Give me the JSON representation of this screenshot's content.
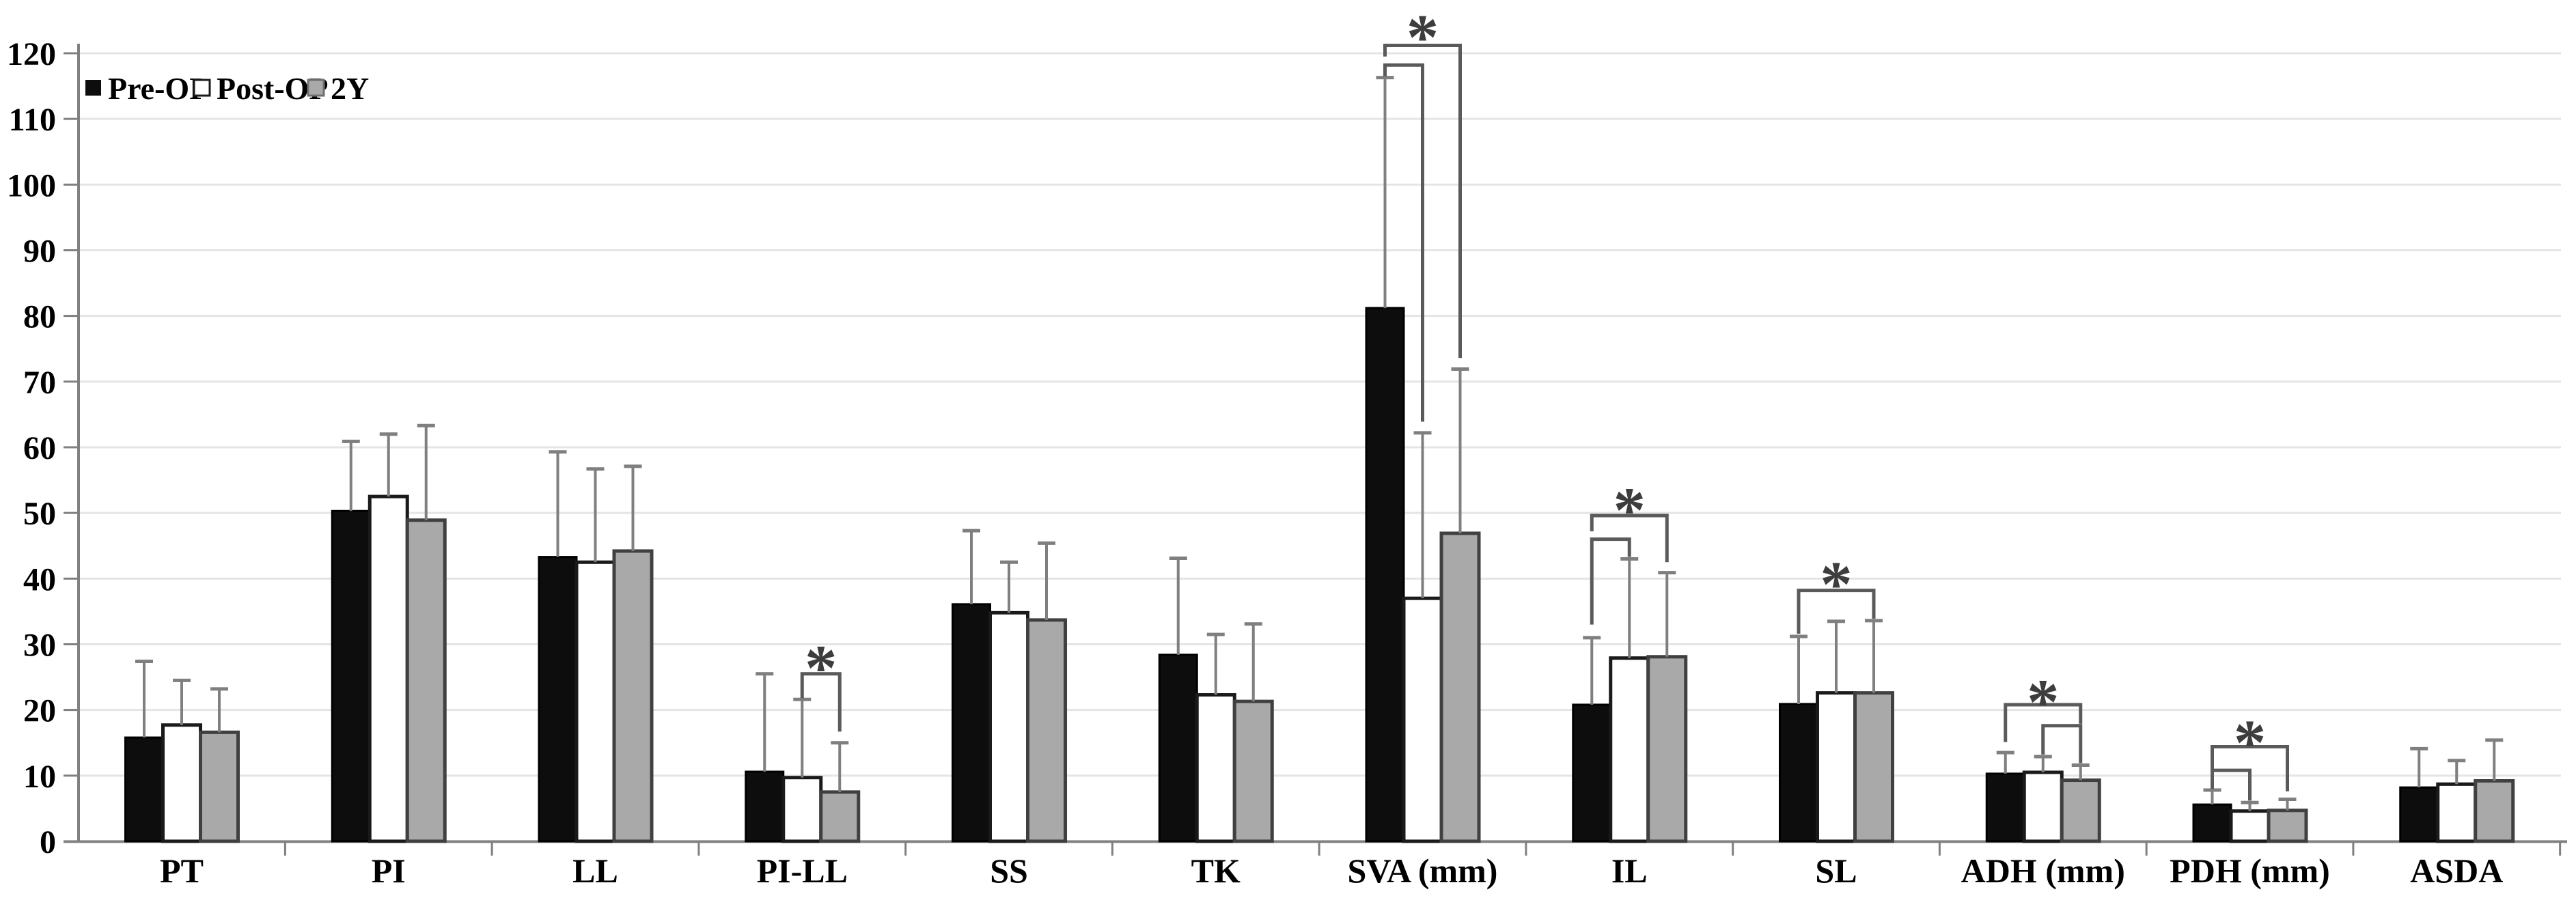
{
  "chart_data": {
    "type": "bar",
    "title": "",
    "xlabel": "",
    "ylabel": "",
    "categories": [
      "PT",
      "PI",
      "LL",
      "PI-LL",
      "SS",
      "TK",
      "SVA (mm)",
      "IL",
      "SL",
      "ADH (mm)",
      "PDH (mm)",
      "ASDA"
    ],
    "series": [
      {
        "name": "Pre-OP",
        "fill": "#0d0d0d",
        "stroke": "#000000",
        "values": [
          15.8,
          50.3,
          43.3,
          10.6,
          36.1,
          28.4,
          81.2,
          20.8,
          20.9,
          10.3,
          5.6,
          8.2
        ],
        "error_tops": [
          27.4,
          60.9,
          59.3,
          25.5,
          47.3,
          43.1,
          116.3,
          31.0,
          31.2,
          13.5,
          7.8,
          14.1
        ]
      },
      {
        "name": "Post-OP",
        "fill": "#ffffff",
        "stroke": "#1a1a1a",
        "values": [
          17.7,
          52.5,
          42.5,
          9.7,
          34.8,
          22.3,
          37.0,
          27.9,
          22.6,
          10.5,
          4.6,
          8.7
        ],
        "error_tops": [
          24.5,
          62.0,
          56.7,
          21.6,
          42.5,
          31.5,
          62.2,
          43.0,
          33.5,
          12.9,
          5.9,
          12.3
        ]
      },
      {
        "name": "2Y",
        "fill": "#a9a9a9",
        "stroke": "#404040",
        "values": [
          16.6,
          48.9,
          44.2,
          7.5,
          33.7,
          21.3,
          46.9,
          28.1,
          22.6,
          9.3,
          4.7,
          9.2
        ],
        "error_tops": [
          23.2,
          63.3,
          57.1,
          15.0,
          45.4,
          33.1,
          71.9,
          40.9,
          33.6,
          11.6,
          6.4,
          15.4
        ]
      }
    ],
    "ylim": [
      0,
      120
    ],
    "ytick_step": 10,
    "yticks": [
      "0",
      "10",
      "20",
      "30",
      "40",
      "50",
      "60",
      "70",
      "80",
      "90",
      "100",
      "110",
      "120"
    ],
    "grid": true,
    "legend_position": "top-left",
    "error_bars": "upper-sd-whiskers",
    "significance": [
      {
        "category": "PI-LL",
        "category_index": 3,
        "star": "*",
        "star_y": 28.3,
        "brackets": [
          {
            "from_series": 1,
            "to_series": 2,
            "bar_y": 25.5,
            "left_leg_to": 21.8,
            "right_leg_to": 16.7
          }
        ]
      },
      {
        "category": "SVA (mm)",
        "category_index": 6,
        "star": "*",
        "star_y": 124.3,
        "brackets": [
          {
            "from_series": 0,
            "to_series": 1,
            "bar_y": 118.2,
            "left_leg_to": 116.5,
            "right_leg_to": 63.9
          },
          {
            "from_series": 0,
            "to_series": 2,
            "bar_y": 121.2,
            "left_leg_to": 119.5,
            "right_leg_to": 73.6
          }
        ]
      },
      {
        "category": "IL",
        "category_index": 7,
        "star": "*",
        "star_y": 52.3,
        "brackets": [
          {
            "from_series": 0,
            "to_series": 1,
            "bar_y": 46.0,
            "left_leg_to": 33.0,
            "right_leg_to": 43.3
          },
          {
            "from_series": 0,
            "to_series": 2,
            "bar_y": 49.6,
            "left_leg_to": 47.2,
            "right_leg_to": 42.5
          }
        ]
      },
      {
        "category": "SL",
        "category_index": 8,
        "star": "*",
        "star_y": 41.0,
        "brackets": [
          {
            "from_series": 0,
            "to_series": 2,
            "bar_y": 38.2,
            "left_leg_to": 31.6,
            "right_leg_to": 33.9
          }
        ]
      },
      {
        "category": "ADH (mm)",
        "category_index": 9,
        "star": "*",
        "star_y": 23.1,
        "brackets": [
          {
            "from_series": 1,
            "to_series": 2,
            "bar_y": 17.6,
            "left_leg_to": 13.2,
            "right_leg_to": 11.9
          },
          {
            "from_series": 0,
            "to_series": 2,
            "bar_y": 20.8,
            "left_leg_to": 15.1,
            "right_leg_to": 17.9
          }
        ]
      },
      {
        "category": "PDH (mm)",
        "category_index": 10,
        "star": "*",
        "star_y": 16.9,
        "brackets": [
          {
            "from_series": 0,
            "to_series": 1,
            "bar_y": 10.8,
            "left_leg_to": 8.0,
            "right_leg_to": 6.2
          },
          {
            "from_series": 0,
            "to_series": 2,
            "bar_y": 14.4,
            "left_leg_to": 11.0,
            "right_leg_to": 7.6
          }
        ]
      }
    ],
    "colors": {
      "background": "#ffffff",
      "gridline": "#e5e5e5",
      "axis": "#808080",
      "error_bar": "#7f7f7f",
      "bracket": "#5a5a5a",
      "star": "#3d3d3d",
      "text": "#000000"
    }
  }
}
